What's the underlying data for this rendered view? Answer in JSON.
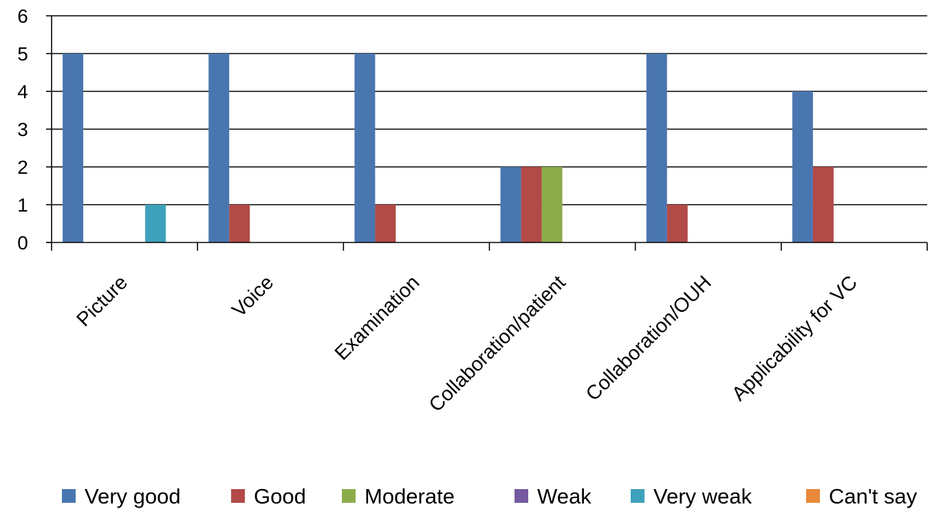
{
  "chart_data": {
    "type": "bar",
    "categories": [
      "Picture",
      "Voice",
      "Examination",
      "Collaboration/patient",
      "Collaboration/OUH",
      "Applicability for VC"
    ],
    "series": [
      {
        "name": "Very good",
        "color": "#4a76b0",
        "values": [
          5,
          5,
          5,
          2,
          5,
          4
        ]
      },
      {
        "name": "Good",
        "color": "#b24a47",
        "values": [
          0,
          1,
          1,
          2,
          1,
          2
        ]
      },
      {
        "name": "Moderate",
        "color": "#8cac4c",
        "values": [
          0,
          0,
          0,
          2,
          0,
          0
        ]
      },
      {
        "name": "Weak",
        "color": "#7559a0",
        "values": [
          0,
          0,
          0,
          0,
          0,
          0
        ]
      },
      {
        "name": "Very weak",
        "color": "#3ea1bb",
        "values": [
          1,
          0,
          0,
          0,
          0,
          0
        ]
      },
      {
        "name": "Can't say",
        "color": "#e9883a",
        "values": [
          0,
          0,
          0,
          0,
          0,
          0
        ]
      }
    ],
    "y_ticks": [
      "0",
      "1",
      "2",
      "3",
      "4",
      "5",
      "6"
    ],
    "ylim": [
      0,
      6
    ],
    "grid": true,
    "legend_position": "bottom",
    "title": "",
    "xlabel": "",
    "ylabel": ""
  }
}
